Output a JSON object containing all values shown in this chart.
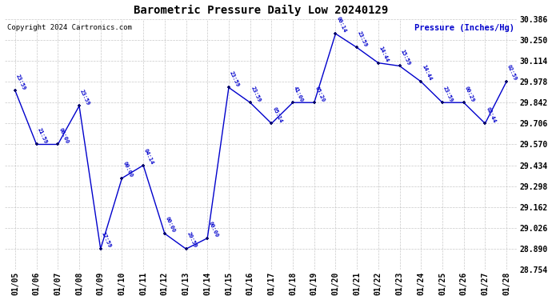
{
  "title": "Barometric Pressure Daily Low 20240129",
  "ylabel": "Pressure (Inches/Hg)",
  "copyright": "Copyright 2024 Cartronics.com",
  "line_color": "#0000cc",
  "marker_color": "#000066",
  "text_color": "#0000cc",
  "background_color": "#ffffff",
  "grid_color": "#bbbbbb",
  "ylim": [
    28.754,
    30.386
  ],
  "yticks": [
    28.754,
    28.89,
    29.026,
    29.162,
    29.298,
    29.434,
    29.57,
    29.706,
    29.842,
    29.978,
    30.114,
    30.25,
    30.386
  ],
  "dates": [
    "01/05",
    "01/06",
    "01/07",
    "01/08",
    "01/09",
    "01/10",
    "01/11",
    "01/12",
    "01/13",
    "01/14",
    "01/15",
    "01/16",
    "01/17",
    "01/18",
    "01/19",
    "01/20",
    "01/21",
    "01/22",
    "01/23",
    "01/24",
    "01/25",
    "01/26",
    "01/27",
    "01/28"
  ],
  "values": [
    29.92,
    29.57,
    29.57,
    29.82,
    28.89,
    29.35,
    29.434,
    28.99,
    28.89,
    28.96,
    29.94,
    29.842,
    29.706,
    29.842,
    29.842,
    30.29,
    30.2,
    30.1,
    30.08,
    29.978,
    29.842,
    29.842,
    29.706,
    29.978
  ],
  "time_labels": [
    "23:59",
    "21:59",
    "00:00",
    "23:59",
    "17:59",
    "00:00",
    "04:14",
    "00:00",
    "20:59",
    "00:00",
    "23:59",
    "23:59",
    "05:14",
    "41:00",
    "65:20",
    "00:14",
    "23:59",
    "14:44",
    "15:59",
    "14:44",
    "23:59",
    "00:29",
    "02:44",
    "02:59"
  ]
}
